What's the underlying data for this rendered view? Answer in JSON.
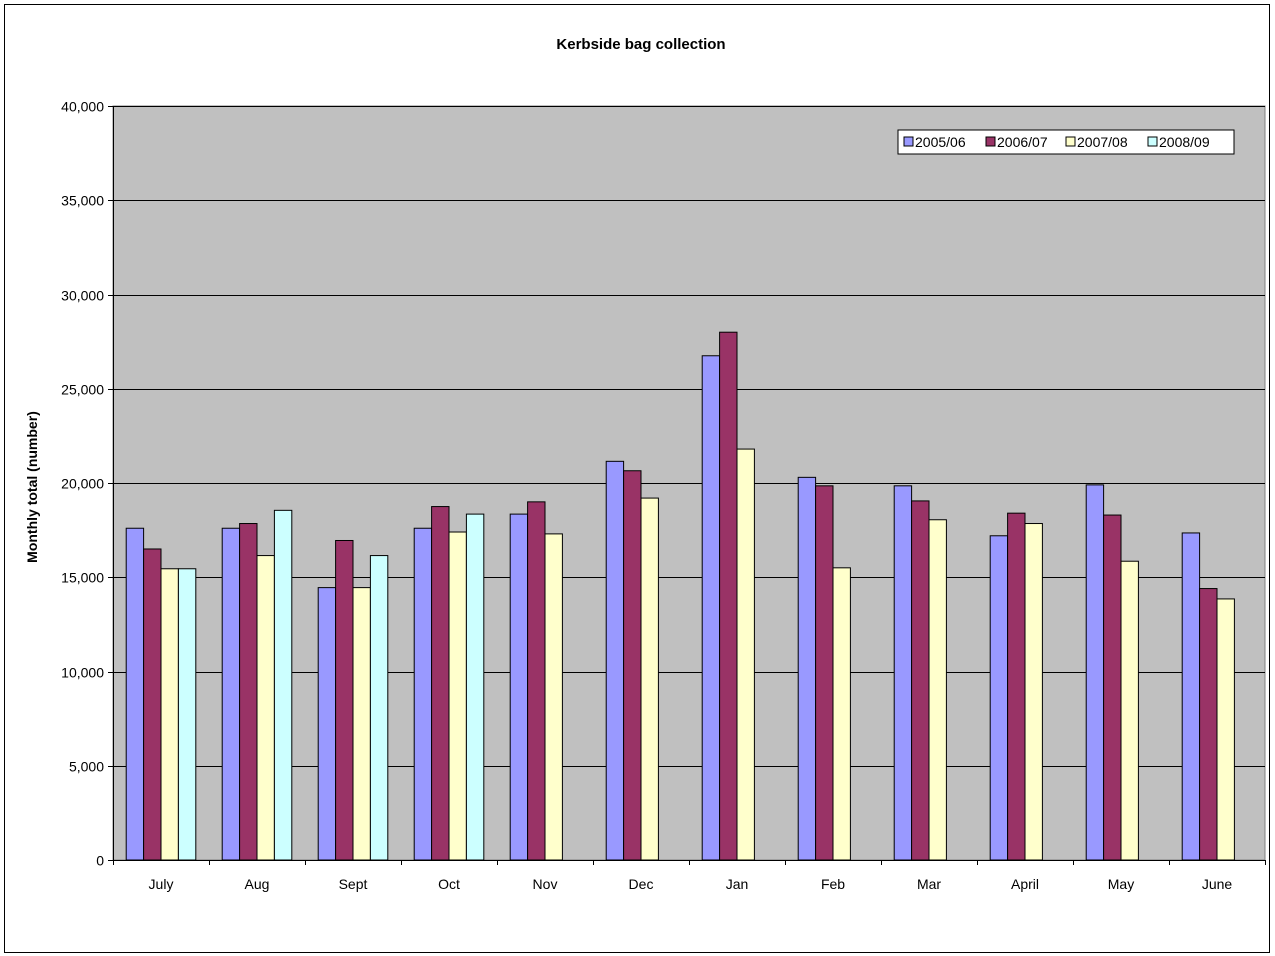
{
  "chart_data": {
    "type": "bar",
    "title": "Kerbside bag collection",
    "xlabel": "",
    "ylabel": "Monthly total (number)",
    "ylim": [
      0,
      40000
    ],
    "yticks": [
      0,
      5000,
      10000,
      15000,
      20000,
      25000,
      30000,
      35000,
      40000
    ],
    "ytick_labels": [
      "0",
      "5,000",
      "10,000",
      "15,000",
      "20,000",
      "25,000",
      "30,000",
      "35,000",
      "40,000"
    ],
    "categories": [
      "July",
      "Aug",
      "Sept",
      "Oct",
      "Nov",
      "Dec",
      "Jan",
      "Feb",
      "Mar",
      "April",
      "May",
      "June"
    ],
    "series": [
      {
        "name": "2005/06",
        "color": "#9999ff",
        "values": [
          17600,
          17600,
          14450,
          17600,
          18350,
          21150,
          26750,
          20300,
          19850,
          17200,
          19900,
          17350
        ]
      },
      {
        "name": "2006/07",
        "color": "#993366",
        "values": [
          16500,
          17850,
          16950,
          18750,
          19000,
          20650,
          28000,
          19850,
          19050,
          18400,
          18300,
          14400
        ]
      },
      {
        "name": "2007/08",
        "color": "#ffffcc",
        "values": [
          15450,
          16150,
          14450,
          17400,
          17300,
          19200,
          21800,
          15500,
          18050,
          17850,
          15850,
          13850
        ]
      },
      {
        "name": "2008/09",
        "color": "#ccffff",
        "values": [
          15450,
          18550,
          16150,
          18350,
          null,
          null,
          null,
          null,
          null,
          null,
          null,
          null
        ]
      }
    ],
    "plot_background": "#c0c0c0",
    "grid": true,
    "legend_position": "top-right"
  }
}
